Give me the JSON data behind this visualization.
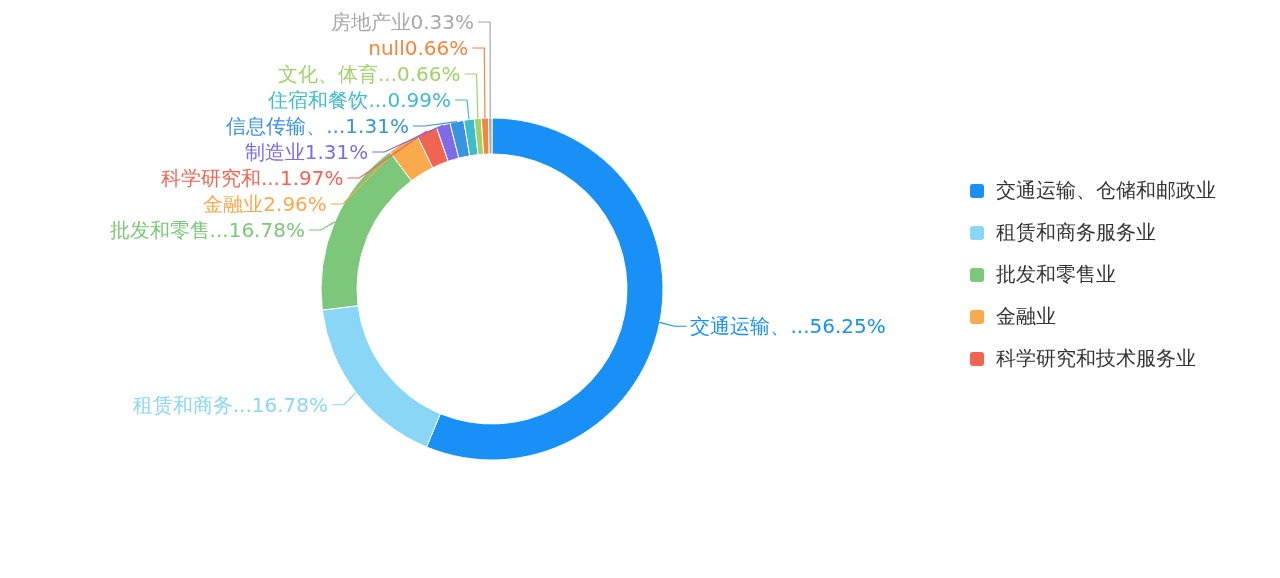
{
  "chart_data": {
    "type": "donut",
    "legend": "right",
    "categories": [
      "交通运输、仓储和邮政业",
      "租赁和商务服务业",
      "批发和零售业",
      "金融业",
      "科学研究和技术服务业",
      "制造业",
      "信息传输、...",
      "住宿和餐饮...",
      "文化、体育...",
      "null",
      "房地产业"
    ],
    "values": [
      56.25,
      16.78,
      16.78,
      2.96,
      1.97,
      1.31,
      1.31,
      0.99,
      0.66,
      0.66,
      0.33
    ],
    "annotations": [
      {
        "text": "交通运输、...",
        "x": "交通运输、仓储和邮政业"
      },
      {
        "text": "租赁和商务...",
        "x": "租赁和商务服务业"
      },
      {
        "text": "批发和零售...",
        "x": "批发和零售业"
      },
      {
        "text": "科学研究和...",
        "x": "科学研究和技术服务业"
      }
    ],
    "value_labels": [
      "56.25%",
      "16.78%",
      "16.78%",
      "2.96%",
      "1.97%",
      "1.31%",
      "1.31%",
      "0.99%",
      "0.66%",
      "0.66%",
      "0.33%"
    ],
    "colors": [
      "#1890f5",
      "#8ad6f7",
      "#7cc77a",
      "#f8aa4c",
      "#f26452",
      "#7f6be6",
      "#3a93e0",
      "#3ebcc9",
      "#9fd36a",
      "#f7863c",
      "#a8a8a8"
    ]
  }
}
